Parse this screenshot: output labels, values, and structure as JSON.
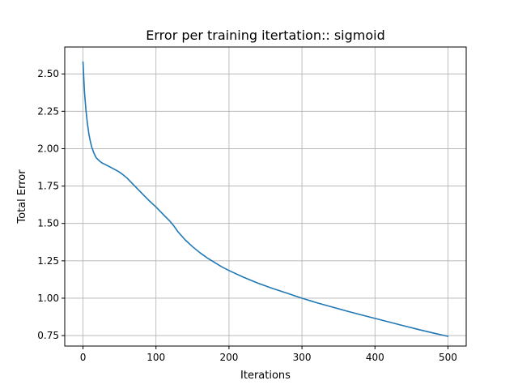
{
  "chart_data": {
    "type": "line",
    "title": "Error per training itertation:: sigmoid",
    "xlabel": "Iterations",
    "ylabel": "Total Error",
    "xlim": [
      -25,
      525
    ],
    "ylim": [
      0.68,
      2.68
    ],
    "xticks": [
      0,
      100,
      200,
      300,
      400,
      500
    ],
    "yticks": [
      0.75,
      1.0,
      1.25,
      1.5,
      1.75,
      2.0,
      2.25,
      2.5
    ],
    "xtick_labels": [
      "0",
      "100",
      "200",
      "300",
      "400",
      "500"
    ],
    "ytick_labels": [
      "0.75",
      "1.00",
      "1.25",
      "1.50",
      "1.75",
      "2.00",
      "2.25",
      "2.50"
    ],
    "grid": true,
    "series": [
      {
        "color": "#1f77b4",
        "x": [
          0,
          2,
          4,
          6,
          8,
          10,
          12,
          15,
          18,
          22,
          26,
          30,
          35,
          40,
          45,
          50,
          55,
          60,
          65,
          70,
          80,
          90,
          100,
          110,
          120,
          125,
          130,
          140,
          150,
          160,
          170,
          180,
          190,
          200,
          220,
          240,
          260,
          280,
          300,
          320,
          340,
          360,
          380,
          400,
          420,
          440,
          460,
          480,
          500
        ],
        "y": [
          2.58,
          2.38,
          2.26,
          2.17,
          2.1,
          2.05,
          2.01,
          1.97,
          1.94,
          1.92,
          1.905,
          1.895,
          1.883,
          1.87,
          1.857,
          1.843,
          1.825,
          1.805,
          1.78,
          1.755,
          1.705,
          1.655,
          1.61,
          1.56,
          1.51,
          1.48,
          1.445,
          1.39,
          1.345,
          1.305,
          1.27,
          1.24,
          1.21,
          1.185,
          1.14,
          1.1,
          1.065,
          1.033,
          1.0,
          0.97,
          0.943,
          0.916,
          0.89,
          0.865,
          0.84,
          0.815,
          0.79,
          0.767,
          0.745
        ]
      }
    ]
  }
}
